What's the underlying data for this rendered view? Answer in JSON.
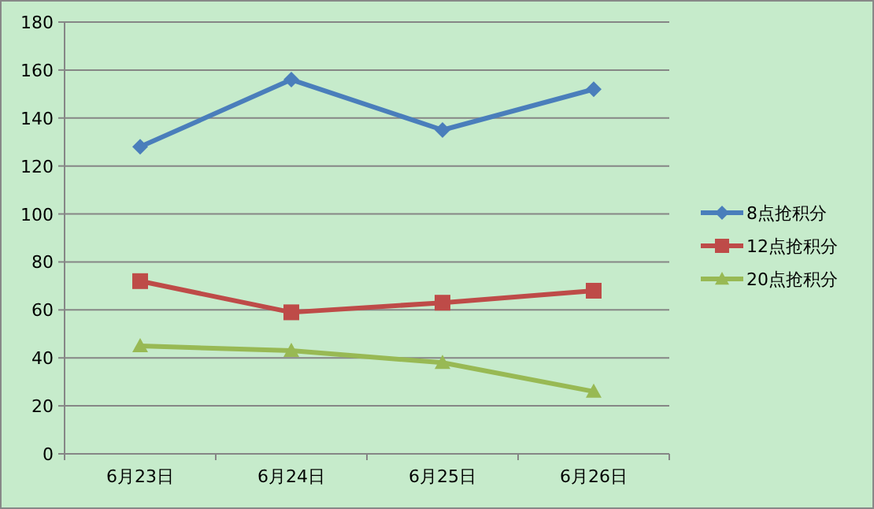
{
  "chart_data": {
    "type": "line",
    "categories": [
      "6月23日",
      "6月24日",
      "6月25日",
      "6月26日"
    ],
    "series": [
      {
        "name": "8点抢积分",
        "color": "#4a7ebb",
        "marker": "diamond",
        "values": [
          128,
          156,
          135,
          152
        ]
      },
      {
        "name": "12点抢积分",
        "color": "#be4b48",
        "marker": "square",
        "values": [
          72,
          59,
          63,
          68
        ]
      },
      {
        "name": "20点抢积分",
        "color": "#98b954",
        "marker": "triangle",
        "values": [
          45,
          43,
          38,
          26
        ]
      }
    ],
    "ylim": [
      0,
      180
    ],
    "yticks": [
      0,
      20,
      40,
      60,
      80,
      100,
      120,
      140,
      160,
      180
    ],
    "grid": "y",
    "legend": "right",
    "line_style": "solid"
  }
}
